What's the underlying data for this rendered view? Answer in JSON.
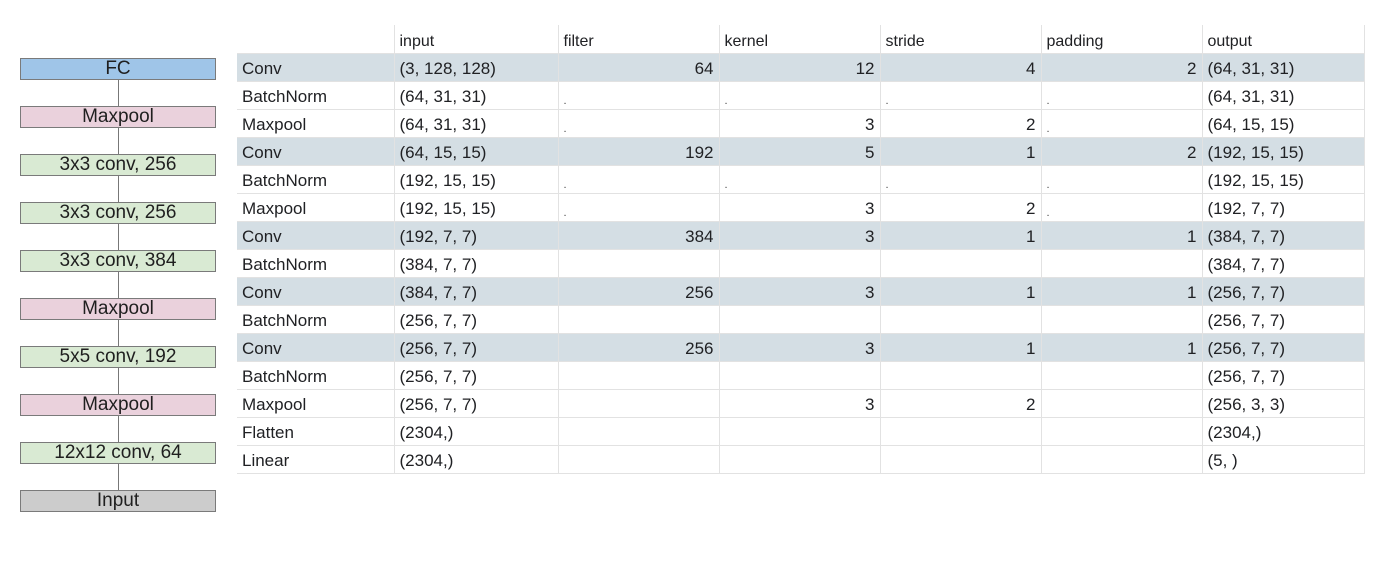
{
  "diagram": {
    "blocks": [
      {
        "label": "FC",
        "kind": "fc"
      },
      {
        "label": "Maxpool",
        "kind": "pool"
      },
      {
        "label": "3x3 conv, 256",
        "kind": "conv"
      },
      {
        "label": "3x3 conv, 256",
        "kind": "conv"
      },
      {
        "label": "3x3 conv, 384",
        "kind": "conv"
      },
      {
        "label": "Maxpool",
        "kind": "pool"
      },
      {
        "label": "5x5 conv, 192",
        "kind": "conv"
      },
      {
        "label": "Maxpool",
        "kind": "pool"
      },
      {
        "label": "12x12 conv, 64",
        "kind": "conv"
      },
      {
        "label": "Input",
        "kind": "input"
      }
    ]
  },
  "table": {
    "headers": [
      "",
      "input",
      "filter",
      "kernel",
      "stride",
      "padding",
      "output"
    ],
    "rows": [
      {
        "layer": "Conv",
        "input": "(3, 128, 128)",
        "filter": "64",
        "kernel": "12",
        "stride": "4",
        "padding": "2",
        "output": "(64, 31, 31)",
        "highlight": true
      },
      {
        "layer": "BatchNorm",
        "input": "(64, 31, 31)",
        "filter": ".",
        "kernel": ".",
        "stride": ".",
        "padding": ".",
        "output": "(64, 31, 31)",
        "highlight": false
      },
      {
        "layer": "Maxpool",
        "input": "(64, 31, 31)",
        "filter": ".",
        "kernel": "3",
        "stride": "2",
        "padding": ".",
        "output": "(64, 15, 15)",
        "highlight": false
      },
      {
        "layer": "Conv",
        "input": "(64, 15, 15)",
        "filter": "192",
        "kernel": "5",
        "stride": "1",
        "padding": "2",
        "output": "(192, 15, 15)",
        "highlight": true
      },
      {
        "layer": "BatchNorm",
        "input": "(192, 15, 15)",
        "filter": ".",
        "kernel": ".",
        "stride": ".",
        "padding": ".",
        "output": "(192, 15, 15)",
        "highlight": false
      },
      {
        "layer": "Maxpool",
        "input": "(192, 15, 15)",
        "filter": ".",
        "kernel": "3",
        "stride": "2",
        "padding": ".",
        "output": "(192, 7, 7)",
        "highlight": false
      },
      {
        "layer": "Conv",
        "input": "(192, 7, 7)",
        "filter": "384",
        "kernel": "3",
        "stride": "1",
        "padding": "1",
        "output": "(384, 7, 7)",
        "highlight": true
      },
      {
        "layer": "BatchNorm",
        "input": "(384, 7, 7)",
        "filter": "",
        "kernel": "",
        "stride": "",
        "padding": "",
        "output": "(384, 7, 7)",
        "highlight": false
      },
      {
        "layer": "Conv",
        "input": "(384, 7, 7)",
        "filter": "256",
        "kernel": "3",
        "stride": "1",
        "padding": "1",
        "output": "(256, 7, 7)",
        "highlight": true
      },
      {
        "layer": "BatchNorm",
        "input": "(256, 7, 7)",
        "filter": "",
        "kernel": "",
        "stride": "",
        "padding": "",
        "output": "(256, 7, 7)",
        "highlight": false
      },
      {
        "layer": "Conv",
        "input": "(256, 7, 7)",
        "filter": "256",
        "kernel": "3",
        "stride": "1",
        "padding": "1",
        "output": "(256, 7, 7)",
        "highlight": true
      },
      {
        "layer": "BatchNorm",
        "input": "(256, 7, 7)",
        "filter": "",
        "kernel": "",
        "stride": "",
        "padding": "",
        "output": "(256, 7, 7)",
        "highlight": false
      },
      {
        "layer": "Maxpool",
        "input": "(256, 7, 7)",
        "filter": "",
        "kernel": "3",
        "stride": "2",
        "padding": "",
        "output": "(256, 3, 3)",
        "highlight": false
      },
      {
        "layer": "Flatten",
        "input": "(2304,)",
        "filter": "",
        "kernel": "",
        "stride": "",
        "padding": "",
        "output": "(2304,)",
        "highlight": false
      },
      {
        "layer": "Linear",
        "input": "(2304,)",
        "filter": "",
        "kernel": "",
        "stride": "",
        "padding": "",
        "output": "(5, )",
        "highlight": false
      }
    ]
  }
}
